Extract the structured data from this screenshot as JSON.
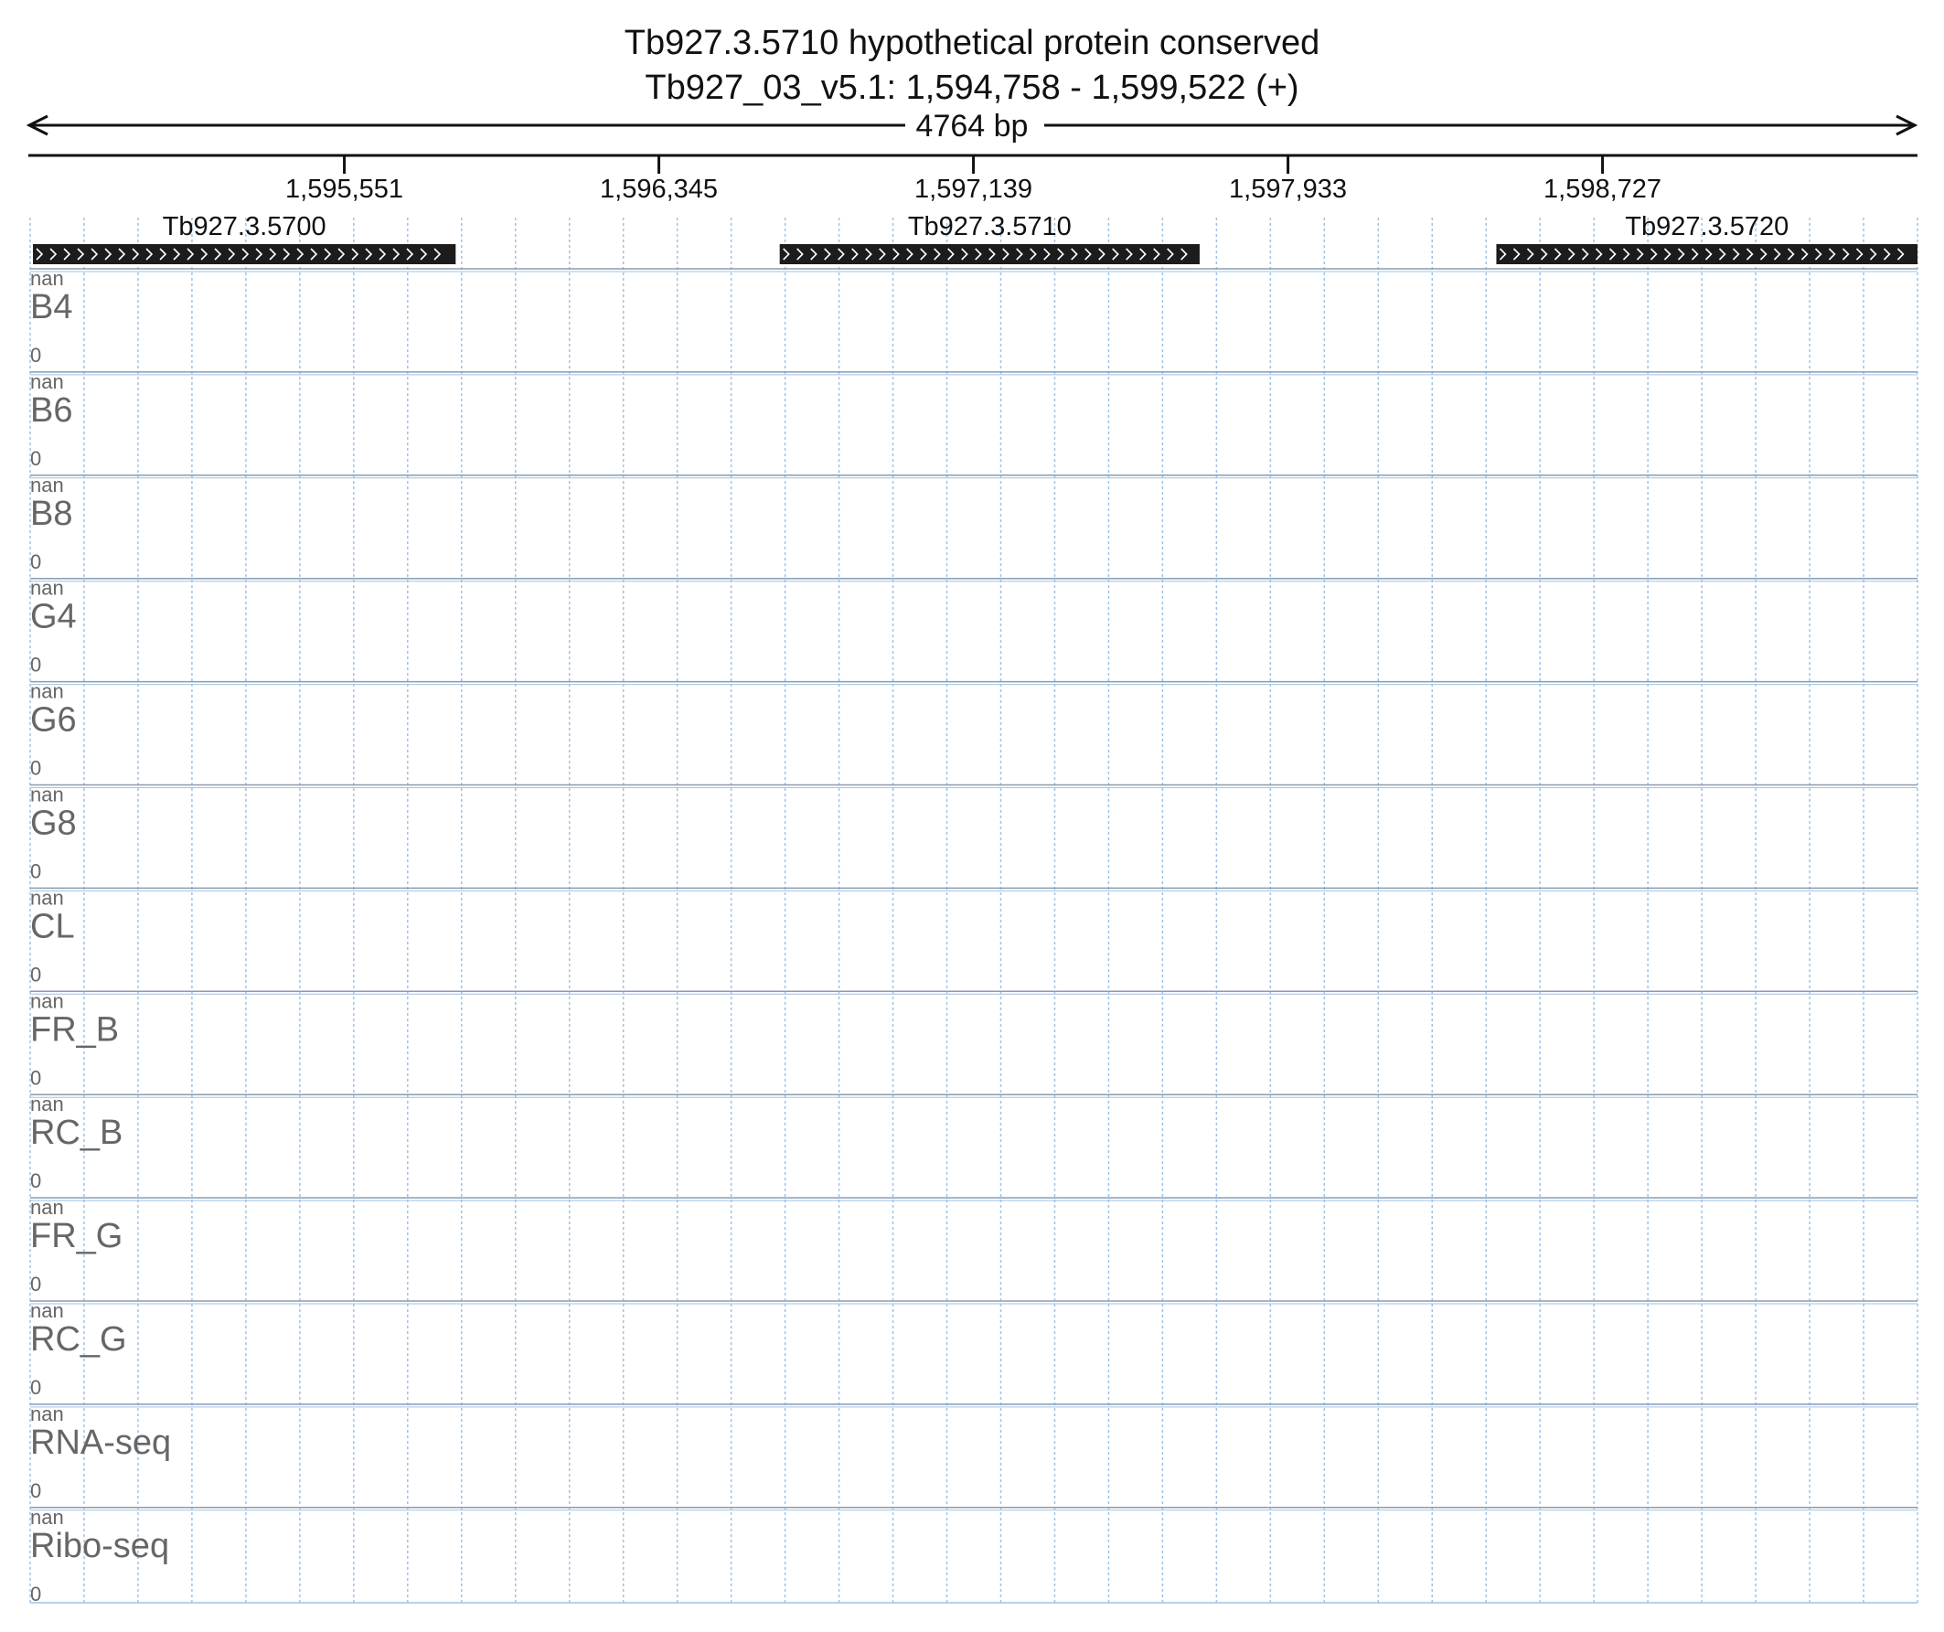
{
  "header": {
    "title": "Tb927.3.5710  hypothetical protein  conserved",
    "location": "Tb927_03_v5.1: 1,594,758 - 1,599,522 (+)",
    "span_label": "4764 bp"
  },
  "region": {
    "start": 1594758,
    "end": 1599522
  },
  "ruler": {
    "ticks": [
      {
        "pos": 1595551,
        "label": "1,595,551"
      },
      {
        "pos": 1596345,
        "label": "1,596,345"
      },
      {
        "pos": 1597139,
        "label": "1,597,139"
      },
      {
        "pos": 1597933,
        "label": "1,597,933"
      },
      {
        "pos": 1598727,
        "label": "1,598,727"
      }
    ]
  },
  "genes": [
    {
      "name": "Tb927.3.5700",
      "start": 1594765,
      "end": 1595832,
      "strand": "+"
    },
    {
      "name": "Tb927.3.5710",
      "start": 1596650,
      "end": 1597710,
      "strand": "+"
    },
    {
      "name": "Tb927.3.5720",
      "start": 1598459,
      "end": 1599522,
      "strand": "+"
    }
  ],
  "tracks": [
    {
      "name": "B4",
      "max": "nan",
      "min": "0"
    },
    {
      "name": "B6",
      "max": "nan",
      "min": "0"
    },
    {
      "name": "B8",
      "max": "nan",
      "min": "0"
    },
    {
      "name": "G4",
      "max": "nan",
      "min": "0"
    },
    {
      "name": "G6",
      "max": "nan",
      "min": "0"
    },
    {
      "name": "G8",
      "max": "nan",
      "min": "0"
    },
    {
      "name": "CL",
      "max": "nan",
      "min": "0"
    },
    {
      "name": "FR_B",
      "max": "nan",
      "min": "0"
    },
    {
      "name": "RC_B",
      "max": "nan",
      "min": "0"
    },
    {
      "name": "FR_G",
      "max": "nan",
      "min": "0"
    },
    {
      "name": "RC_G",
      "max": "nan",
      "min": "0"
    },
    {
      "name": "RNA-seq",
      "max": "nan",
      "min": "0"
    },
    {
      "name": "Ribo-seq",
      "max": "nan",
      "min": "0"
    }
  ],
  "colors": {
    "gene_fill": "#1c1c1c",
    "grid": "#9ec3e6",
    "track_separator": "#8a9bb0",
    "track_label": "#666666",
    "text": "#111111"
  }
}
